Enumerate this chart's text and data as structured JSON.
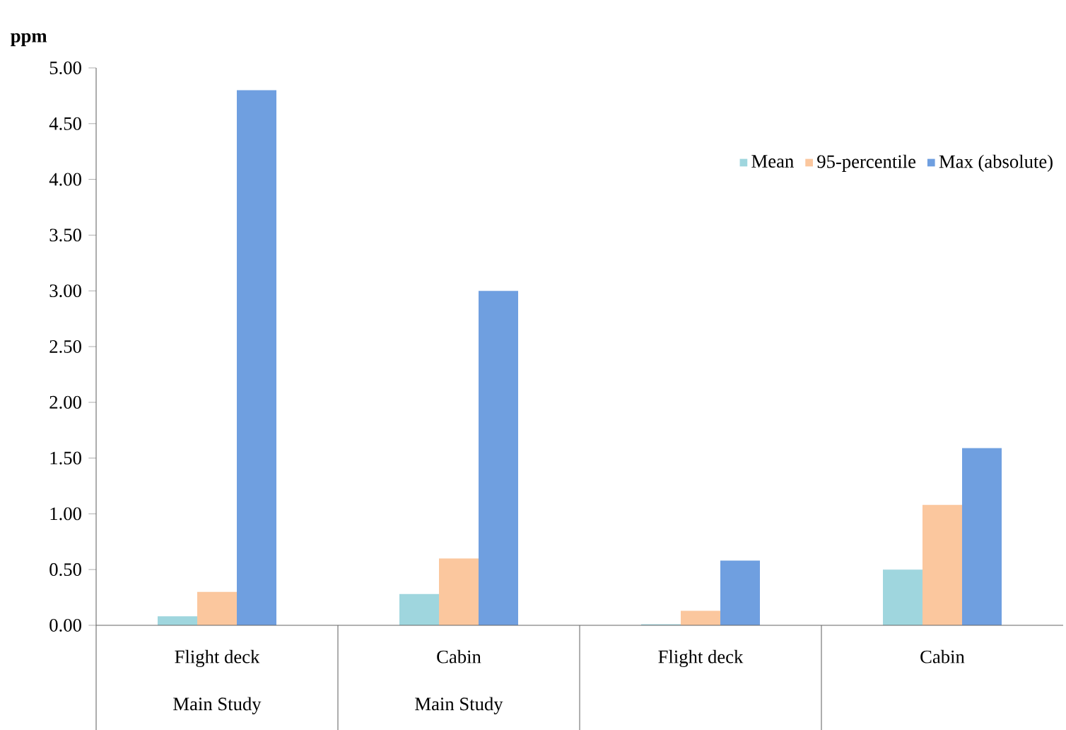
{
  "chart_data": {
    "type": "bar",
    "ylabel": "ppm",
    "categories": [
      "Flight deck",
      "Cabin",
      "Flight deck",
      "Cabin"
    ],
    "annotations": [
      "Main Study",
      "Main Study"
    ],
    "series": [
      {
        "name": "Mean",
        "color": "#9fd6de",
        "values": [
          0.08,
          0.28,
          0.01,
          0.5
        ]
      },
      {
        "name": "95-percentile",
        "color": "#fbc79e",
        "values": [
          0.3,
          0.6,
          0.13,
          1.08
        ]
      },
      {
        "name": "Max (absolute)",
        "color": "#6f9fe0",
        "values": [
          4.8,
          3.0,
          0.58,
          1.59
        ]
      }
    ],
    "ylim": [
      0,
      5
    ],
    "yticks": [
      {
        "value": 0,
        "label": "0.00"
      },
      {
        "value": 0.5,
        "label": "0.50"
      },
      {
        "value": 1,
        "label": "1.00"
      },
      {
        "value": 1.5,
        "label": "1.50"
      },
      {
        "value": 2,
        "label": "2.00"
      },
      {
        "value": 2.5,
        "label": "2.50"
      },
      {
        "value": 3,
        "label": "3.00"
      },
      {
        "value": 3.5,
        "label": "3.50"
      },
      {
        "value": 4,
        "label": "4.00"
      },
      {
        "value": 4.5,
        "label": "4.50"
      },
      {
        "value": 5,
        "label": "5.00"
      }
    ],
    "legend": "top right",
    "grid": false
  }
}
